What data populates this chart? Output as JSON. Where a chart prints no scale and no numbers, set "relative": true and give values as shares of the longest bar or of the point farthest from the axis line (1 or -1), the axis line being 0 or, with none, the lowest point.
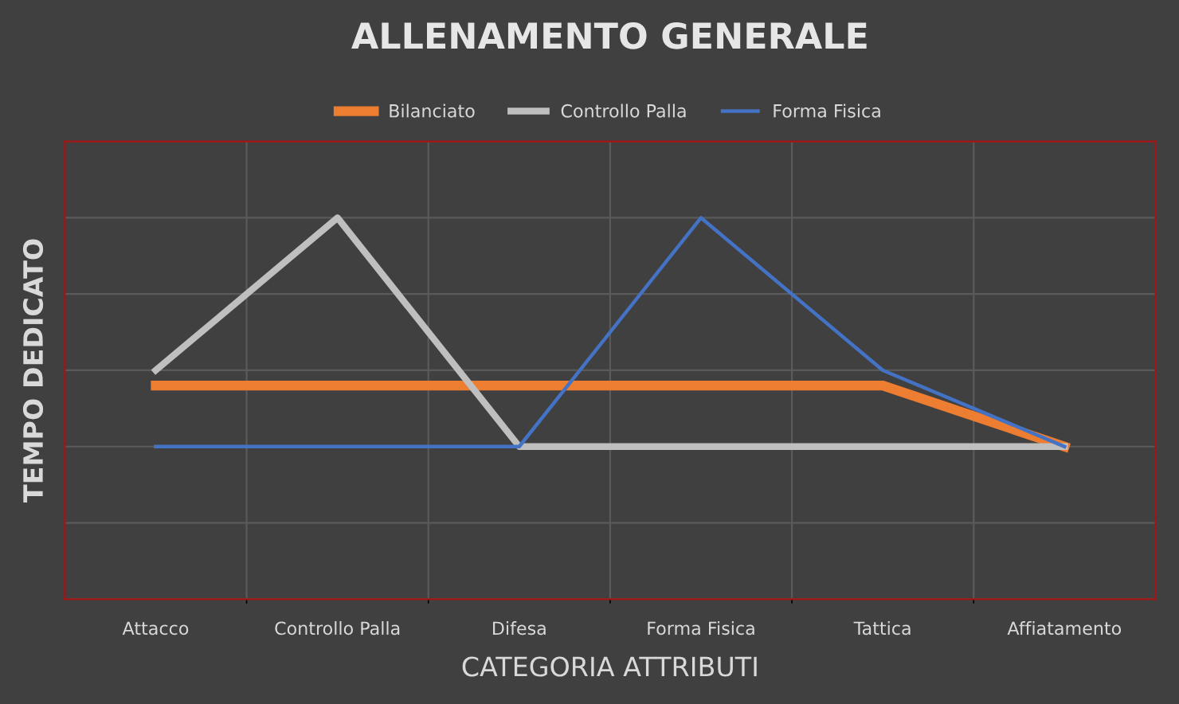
{
  "chart_data": {
    "type": "line",
    "title": "ALLENAMENTO GENERALE",
    "xlabel": "CATEGORIA ATTRIBUTI",
    "ylabel": "TEMPO DEDICATO",
    "relative": true,
    "grid": true,
    "legend": "top",
    "marker": "none",
    "line_style": "solid",
    "categories": [
      "Attacco",
      "Controllo Palla",
      "Difesa",
      "Forma Fisica",
      "Tattica",
      "Affiatamento"
    ],
    "series": [
      {
        "name": "Bilanciato",
        "color": "#ed7d31",
        "values": [
          0.56,
          0.56,
          0.56,
          0.56,
          0.56,
          0.4
        ]
      },
      {
        "name": "Controllo Palla",
        "color": "#bfbfbf",
        "values": [
          0.6,
          1.0,
          0.4,
          0.4,
          0.4,
          0.4
        ]
      },
      {
        "name": "Forma Fisica",
        "color": "#4472c4",
        "values": [
          0.4,
          0.4,
          0.4,
          1.0,
          0.6,
          0.4
        ]
      }
    ]
  }
}
